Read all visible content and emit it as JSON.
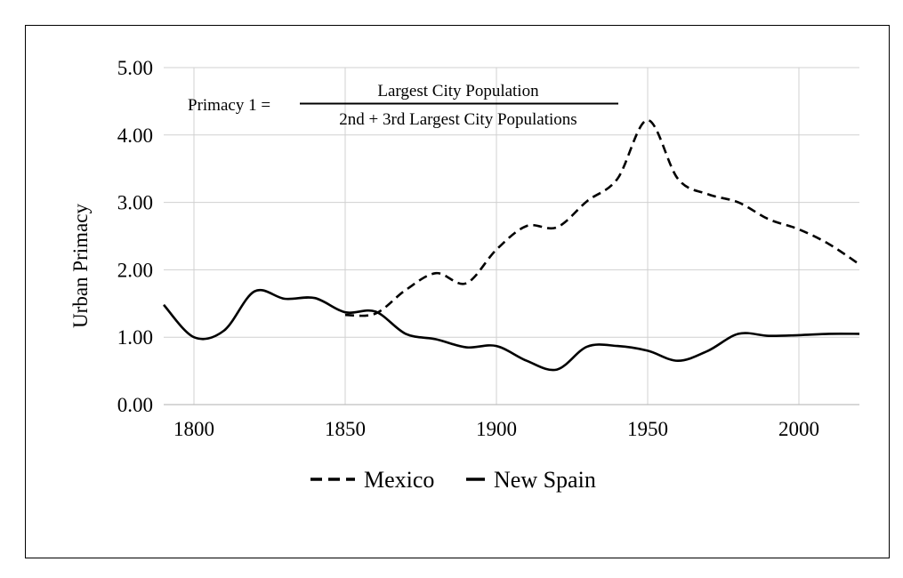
{
  "chart_data": {
    "type": "line",
    "title": "",
    "xlabel": "",
    "ylabel": "Urban Primacy",
    "xlim": [
      1790,
      2020
    ],
    "ylim": [
      0,
      5
    ],
    "x_ticks": [
      "1800",
      "1850",
      "1900",
      "1950",
      "2000"
    ],
    "y_ticks": [
      "0.00",
      "1.00",
      "2.00",
      "3.00",
      "4.00",
      "5.00"
    ],
    "grid": true,
    "legend": "bottom",
    "annotation": {
      "prefix": "Primacy 1 =",
      "numerator": "Largest City Population",
      "denominator": "2nd + 3rd Largest City Populations"
    },
    "series": [
      {
        "name": "Mexico",
        "style": "dashed",
        "color": "#000000",
        "x": [
          1850,
          1860,
          1870,
          1880,
          1890,
          1900,
          1910,
          1920,
          1930,
          1940,
          1950,
          1960,
          1970,
          1980,
          1990,
          2000,
          2010,
          2020
        ],
        "y": [
          1.33,
          1.35,
          1.7,
          1.95,
          1.8,
          2.3,
          2.65,
          2.63,
          3.02,
          3.35,
          4.22,
          3.35,
          3.12,
          3.0,
          2.75,
          2.6,
          2.38,
          2.08
        ]
      },
      {
        "name": "New Spain",
        "style": "solid",
        "color": "#000000",
        "x": [
          1790,
          1800,
          1810,
          1820,
          1830,
          1840,
          1850,
          1860,
          1870,
          1880,
          1890,
          1900,
          1910,
          1920,
          1930,
          1940,
          1950,
          1960,
          1970,
          1980,
          1990,
          2000,
          2010,
          2020
        ],
        "y": [
          1.48,
          1.0,
          1.1,
          1.68,
          1.57,
          1.58,
          1.37,
          1.38,
          1.05,
          0.97,
          0.85,
          0.87,
          0.65,
          0.52,
          0.86,
          0.87,
          0.8,
          0.65,
          0.8,
          1.05,
          1.02,
          1.03,
          1.05,
          1.05
        ]
      }
    ]
  }
}
